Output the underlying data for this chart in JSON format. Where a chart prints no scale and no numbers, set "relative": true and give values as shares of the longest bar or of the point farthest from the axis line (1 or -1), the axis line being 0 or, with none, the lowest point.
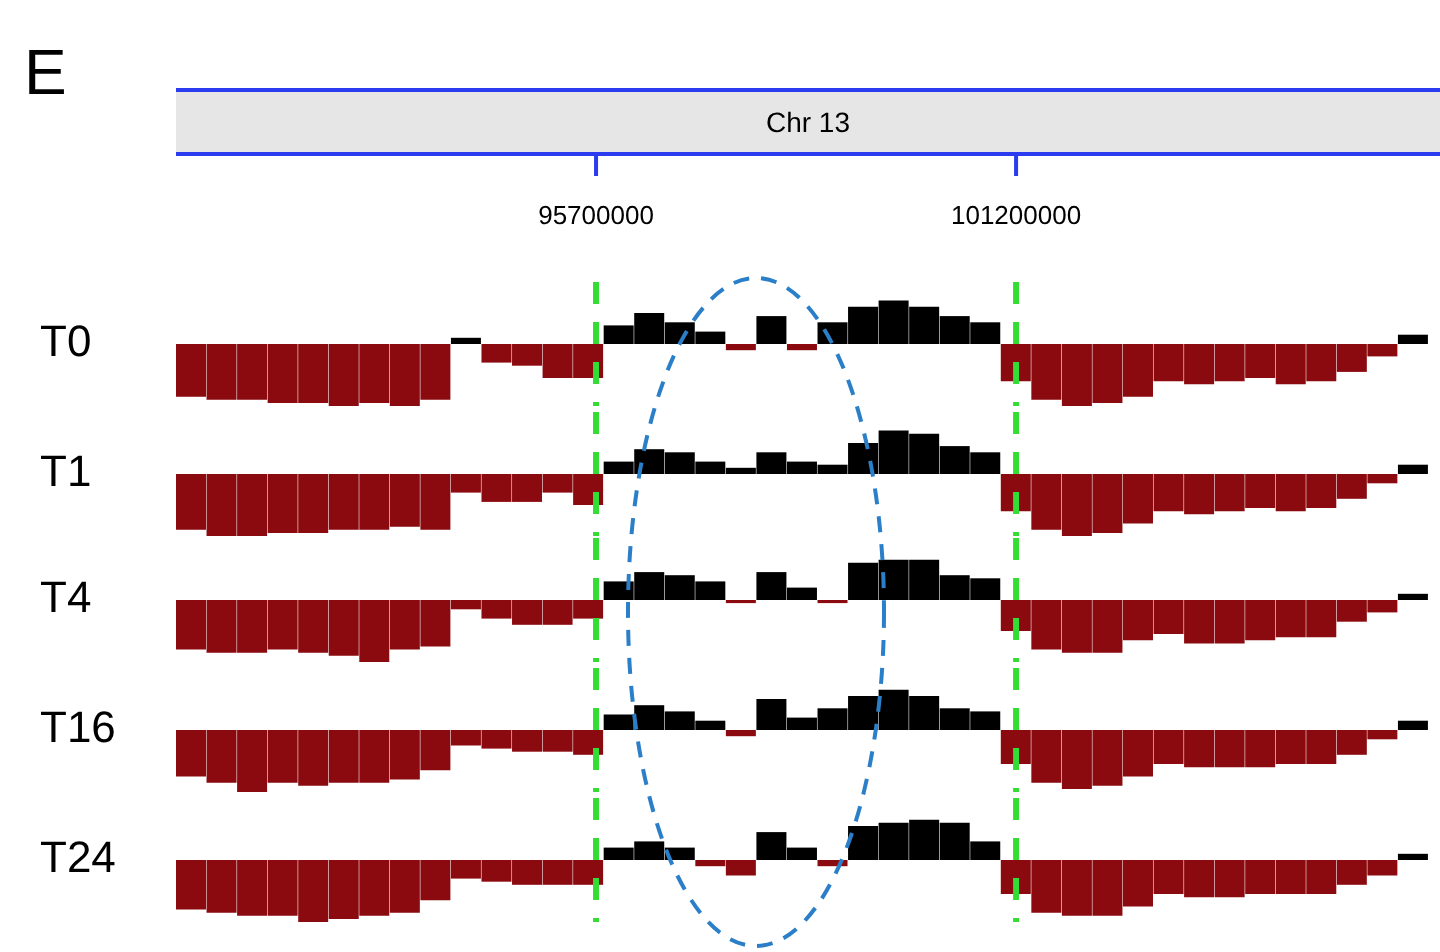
{
  "chart_data": [
    {
      "type": "bar",
      "title": "Chr 13",
      "annotations": [
        "E"
      ],
      "ylabel": "T0",
      "relative": true,
      "xlim": [
        90200000,
        106620000
      ],
      "xticks": [
        95700000,
        101200000
      ],
      "tick_labels": "x",
      "x": [
        90400000,
        90800000,
        91200000,
        91600000,
        92000000,
        92400000,
        92800000,
        93200000,
        93600000,
        94000000,
        94400000,
        94800000,
        95200000,
        95600000,
        96000000,
        96400000,
        96800000,
        97200000,
        97600000,
        98000000,
        98400000,
        98800000,
        99200000,
        99600000,
        100000000,
        100400000,
        100800000,
        101200000,
        101600000,
        102000000,
        102400000,
        102800000,
        103200000,
        103600000,
        104000000,
        104400000,
        104800000,
        105200000,
        105600000,
        106000000,
        106400000
      ],
      "values": [
        -0.85,
        -0.9,
        -0.9,
        -0.95,
        -0.95,
        -1,
        -0.95,
        -1,
        -0.9,
        0.1,
        -0.3,
        -0.35,
        -0.55,
        -0.55,
        0.3,
        0.5,
        0.35,
        0.2,
        -0.1,
        0.45,
        -0.1,
        0.35,
        0.6,
        0.7,
        0.6,
        0.45,
        0.35,
        -0.6,
        -0.9,
        -1,
        -0.95,
        -0.85,
        -0.6,
        -0.65,
        -0.6,
        -0.55,
        -0.65,
        -0.6,
        -0.45,
        -0.2,
        0.15
      ],
      "colors": [
        "#8b0a0f",
        "#8b0a0f",
        "#8b0a0f",
        "#8b0a0f",
        "#8b0a0f",
        "#8b0a0f",
        "#8b0a0f",
        "#8b0a0f",
        "#8b0a0f",
        "#000000",
        "#8b0a0f",
        "#8b0a0f",
        "#8b0a0f",
        "#8b0a0f",
        "#000000",
        "#000000",
        "#000000",
        "#000000",
        "#8b0a0f",
        "#000000",
        "#8b0a0f",
        "#000000",
        "#000000",
        "#000000",
        "#000000",
        "#000000",
        "#000000",
        "#8b0a0f",
        "#8b0a0f",
        "#8b0a0f",
        "#8b0a0f",
        "#8b0a0f",
        "#8b0a0f",
        "#8b0a0f",
        "#8b0a0f",
        "#8b0a0f",
        "#8b0a0f",
        "#8b0a0f",
        "#8b0a0f",
        "#8b0a0f",
        "#000000"
      ],
      "ref_lines": [
        {
          "axis": "x",
          "value": 95700000,
          "color": "#33dd33",
          "line_style": "dashed"
        },
        {
          "axis": "x",
          "value": 101200000,
          "color": "#33dd33",
          "line_style": "dashed"
        }
      ]
    },
    {
      "type": "bar",
      "ylabel": "T1",
      "relative": true,
      "xlim": [
        90200000,
        106620000
      ],
      "tick_labels": false,
      "x": [
        90400000,
        90800000,
        91200000,
        91600000,
        92000000,
        92400000,
        92800000,
        93200000,
        93600000,
        94000000,
        94400000,
        94800000,
        95200000,
        95600000,
        96000000,
        96400000,
        96800000,
        97200000,
        97600000,
        98000000,
        98400000,
        98800000,
        99200000,
        99600000,
        100000000,
        100400000,
        100800000,
        101200000,
        101600000,
        102000000,
        102400000,
        102800000,
        103200000,
        103600000,
        104000000,
        104400000,
        104800000,
        105200000,
        105600000,
        106000000,
        106400000
      ],
      "values": [
        -0.9,
        -1,
        -1,
        -0.95,
        -0.95,
        -0.9,
        -0.9,
        -0.85,
        -0.9,
        -0.3,
        -0.45,
        -0.45,
        -0.3,
        -0.5,
        0.2,
        0.4,
        0.35,
        0.2,
        0.1,
        0.35,
        0.2,
        0.15,
        0.5,
        0.7,
        0.65,
        0.45,
        0.35,
        -0.6,
        -0.9,
        -1,
        -0.95,
        -0.8,
        -0.6,
        -0.65,
        -0.6,
        -0.55,
        -0.6,
        -0.55,
        -0.4,
        -0.15,
        0.15
      ],
      "colors": [
        "#8b0a0f",
        "#8b0a0f",
        "#8b0a0f",
        "#8b0a0f",
        "#8b0a0f",
        "#8b0a0f",
        "#8b0a0f",
        "#8b0a0f",
        "#8b0a0f",
        "#8b0a0f",
        "#8b0a0f",
        "#8b0a0f",
        "#8b0a0f",
        "#8b0a0f",
        "#000000",
        "#000000",
        "#000000",
        "#000000",
        "#000000",
        "#000000",
        "#000000",
        "#000000",
        "#000000",
        "#000000",
        "#000000",
        "#000000",
        "#000000",
        "#8b0a0f",
        "#8b0a0f",
        "#8b0a0f",
        "#8b0a0f",
        "#8b0a0f",
        "#8b0a0f",
        "#8b0a0f",
        "#8b0a0f",
        "#8b0a0f",
        "#8b0a0f",
        "#8b0a0f",
        "#8b0a0f",
        "#8b0a0f",
        "#000000"
      ],
      "ref_lines": [
        {
          "axis": "x",
          "value": 95700000,
          "color": "#33dd33",
          "line_style": "dashed"
        },
        {
          "axis": "x",
          "value": 101200000,
          "color": "#33dd33",
          "line_style": "dashed"
        }
      ]
    },
    {
      "type": "bar",
      "ylabel": "T4",
      "relative": true,
      "xlim": [
        90200000,
        106620000
      ],
      "tick_labels": false,
      "x": [
        90400000,
        90800000,
        91200000,
        91600000,
        92000000,
        92400000,
        92800000,
        93200000,
        93600000,
        94000000,
        94400000,
        94800000,
        95200000,
        95600000,
        96000000,
        96400000,
        96800000,
        97200000,
        97600000,
        98000000,
        98400000,
        98800000,
        99200000,
        99600000,
        100000000,
        100400000,
        100800000,
        101200000,
        101600000,
        102000000,
        102400000,
        102800000,
        103200000,
        103600000,
        104000000,
        104400000,
        104800000,
        105200000,
        105600000,
        106000000,
        106400000
      ],
      "values": [
        -0.8,
        -0.85,
        -0.85,
        -0.8,
        -0.85,
        -0.9,
        -1,
        -0.8,
        -0.75,
        -0.15,
        -0.3,
        -0.4,
        -0.4,
        -0.3,
        0.3,
        0.45,
        0.4,
        0.3,
        -0.05,
        0.45,
        0.2,
        -0.05,
        0.6,
        0.65,
        0.65,
        0.4,
        0.35,
        -0.5,
        -0.8,
        -0.85,
        -0.85,
        -0.65,
        -0.55,
        -0.7,
        -0.7,
        -0.65,
        -0.6,
        -0.6,
        -0.35,
        -0.2,
        0.1
      ],
      "colors": [
        "#8b0a0f",
        "#8b0a0f",
        "#8b0a0f",
        "#8b0a0f",
        "#8b0a0f",
        "#8b0a0f",
        "#8b0a0f",
        "#8b0a0f",
        "#8b0a0f",
        "#8b0a0f",
        "#8b0a0f",
        "#8b0a0f",
        "#8b0a0f",
        "#8b0a0f",
        "#000000",
        "#000000",
        "#000000",
        "#000000",
        "#8b0a0f",
        "#000000",
        "#000000",
        "#8b0a0f",
        "#000000",
        "#000000",
        "#000000",
        "#000000",
        "#000000",
        "#8b0a0f",
        "#8b0a0f",
        "#8b0a0f",
        "#8b0a0f",
        "#8b0a0f",
        "#8b0a0f",
        "#8b0a0f",
        "#8b0a0f",
        "#8b0a0f",
        "#8b0a0f",
        "#8b0a0f",
        "#8b0a0f",
        "#8b0a0f",
        "#000000"
      ],
      "ref_lines": [
        {
          "axis": "x",
          "value": 95700000,
          "color": "#33dd33",
          "line_style": "dashed"
        },
        {
          "axis": "x",
          "value": 101200000,
          "color": "#33dd33",
          "line_style": "dashed"
        }
      ]
    },
    {
      "type": "bar",
      "ylabel": "T16",
      "relative": true,
      "xlim": [
        90200000,
        106620000
      ],
      "tick_labels": false,
      "x": [
        90400000,
        90800000,
        91200000,
        91600000,
        92000000,
        92400000,
        92800000,
        93200000,
        93600000,
        94000000,
        94400000,
        94800000,
        95200000,
        95600000,
        96000000,
        96400000,
        96800000,
        97200000,
        97600000,
        98000000,
        98400000,
        98800000,
        99200000,
        99600000,
        100000000,
        100400000,
        100800000,
        101200000,
        101600000,
        102000000,
        102400000,
        102800000,
        103200000,
        103600000,
        104000000,
        104400000,
        104800000,
        105200000,
        105600000,
        106000000,
        106400000
      ],
      "values": [
        -0.75,
        -0.85,
        -1,
        -0.85,
        -0.9,
        -0.85,
        -0.85,
        -0.8,
        -0.65,
        -0.25,
        -0.3,
        -0.35,
        -0.35,
        -0.4,
        0.25,
        0.4,
        0.3,
        0.15,
        -0.1,
        0.5,
        0.2,
        0.35,
        0.55,
        0.65,
        0.55,
        0.35,
        0.3,
        -0.55,
        -0.85,
        -0.95,
        -0.9,
        -0.75,
        -0.55,
        -0.6,
        -0.6,
        -0.6,
        -0.55,
        -0.55,
        -0.4,
        -0.15,
        0.15
      ],
      "colors": [
        "#8b0a0f",
        "#8b0a0f",
        "#8b0a0f",
        "#8b0a0f",
        "#8b0a0f",
        "#8b0a0f",
        "#8b0a0f",
        "#8b0a0f",
        "#8b0a0f",
        "#8b0a0f",
        "#8b0a0f",
        "#8b0a0f",
        "#8b0a0f",
        "#8b0a0f",
        "#000000",
        "#000000",
        "#000000",
        "#000000",
        "#8b0a0f",
        "#000000",
        "#000000",
        "#000000",
        "#000000",
        "#000000",
        "#000000",
        "#000000",
        "#000000",
        "#8b0a0f",
        "#8b0a0f",
        "#8b0a0f",
        "#8b0a0f",
        "#8b0a0f",
        "#8b0a0f",
        "#8b0a0f",
        "#8b0a0f",
        "#8b0a0f",
        "#8b0a0f",
        "#8b0a0f",
        "#8b0a0f",
        "#8b0a0f",
        "#000000"
      ],
      "ref_lines": [
        {
          "axis": "x",
          "value": 95700000,
          "color": "#33dd33",
          "line_style": "dashed"
        },
        {
          "axis": "x",
          "value": 101200000,
          "color": "#33dd33",
          "line_style": "dashed"
        }
      ]
    },
    {
      "type": "bar",
      "ylabel": "T24",
      "relative": true,
      "xlim": [
        90200000,
        106620000
      ],
      "tick_labels": false,
      "x": [
        90400000,
        90800000,
        91200000,
        91600000,
        92000000,
        92400000,
        92800000,
        93200000,
        93600000,
        94000000,
        94400000,
        94800000,
        95200000,
        95600000,
        96000000,
        96400000,
        96800000,
        97200000,
        97600000,
        98000000,
        98400000,
        98800000,
        99200000,
        99600000,
        100000000,
        100400000,
        100800000,
        101200000,
        101600000,
        102000000,
        102400000,
        102800000,
        103200000,
        103600000,
        104000000,
        104400000,
        104800000,
        105200000,
        105600000,
        106000000,
        106400000
      ],
      "values": [
        -0.8,
        -0.85,
        -0.9,
        -0.9,
        -1,
        -0.95,
        -0.9,
        -0.85,
        -0.65,
        -0.3,
        -0.35,
        -0.4,
        -0.4,
        -0.4,
        0.2,
        0.3,
        0.2,
        -0.1,
        -0.25,
        0.45,
        0.2,
        -0.1,
        0.55,
        0.6,
        0.65,
        0.6,
        0.3,
        -0.55,
        -0.85,
        -0.9,
        -0.9,
        -0.75,
        -0.55,
        -0.6,
        -0.6,
        -0.55,
        -0.55,
        -0.55,
        -0.4,
        -0.25,
        0.1
      ],
      "colors": [
        "#8b0a0f",
        "#8b0a0f",
        "#8b0a0f",
        "#8b0a0f",
        "#8b0a0f",
        "#8b0a0f",
        "#8b0a0f",
        "#8b0a0f",
        "#8b0a0f",
        "#8b0a0f",
        "#8b0a0f",
        "#8b0a0f",
        "#8b0a0f",
        "#8b0a0f",
        "#000000",
        "#000000",
        "#000000",
        "#8b0a0f",
        "#8b0a0f",
        "#000000",
        "#000000",
        "#8b0a0f",
        "#000000",
        "#000000",
        "#000000",
        "#000000",
        "#000000",
        "#8b0a0f",
        "#8b0a0f",
        "#8b0a0f",
        "#8b0a0f",
        "#8b0a0f",
        "#8b0a0f",
        "#8b0a0f",
        "#8b0a0f",
        "#8b0a0f",
        "#8b0a0f",
        "#8b0a0f",
        "#8b0a0f",
        "#8b0a0f",
        "#000000"
      ],
      "ref_lines": [
        {
          "axis": "x",
          "value": 95700000,
          "color": "#33dd33",
          "line_style": "dashed"
        },
        {
          "axis": "x",
          "value": 101200000,
          "color": "#33dd33",
          "line_style": "dashed"
        }
      ]
    }
  ]
}
